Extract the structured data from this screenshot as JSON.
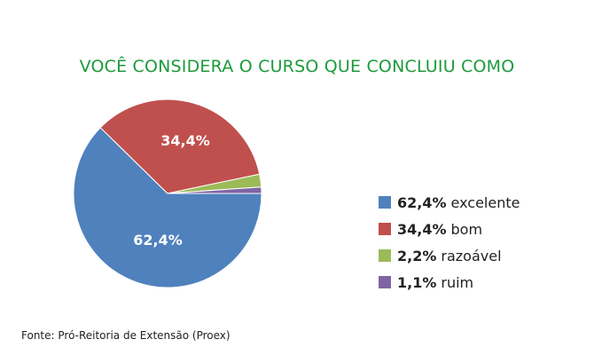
{
  "chart_data": {
    "type": "pie",
    "title": "VOCÊ CONSIDERA O CURSO QUE CONCLUIU COMO",
    "slices": [
      {
        "label": "excelente",
        "value": 62.4,
        "display": "62,4%",
        "color": "#4f81bd"
      },
      {
        "label": "bom",
        "value": 34.4,
        "display": "34,4%",
        "color": "#c0504d"
      },
      {
        "label": "razoável",
        "value": 2.2,
        "display": "2,2%",
        "color": "#9bbb59"
      },
      {
        "label": "ruim",
        "value": 1.1,
        "display": "1,1%",
        "color": "#8064a2"
      }
    ],
    "slice_labels": [
      "62,4%",
      "34,4%"
    ],
    "legend_placement": "right"
  },
  "source": "Fonte: Pró-Reitoria de Extensão (Proex)",
  "colors": {
    "title": "#1d9a3c",
    "slice_label": "#ffffff"
  }
}
